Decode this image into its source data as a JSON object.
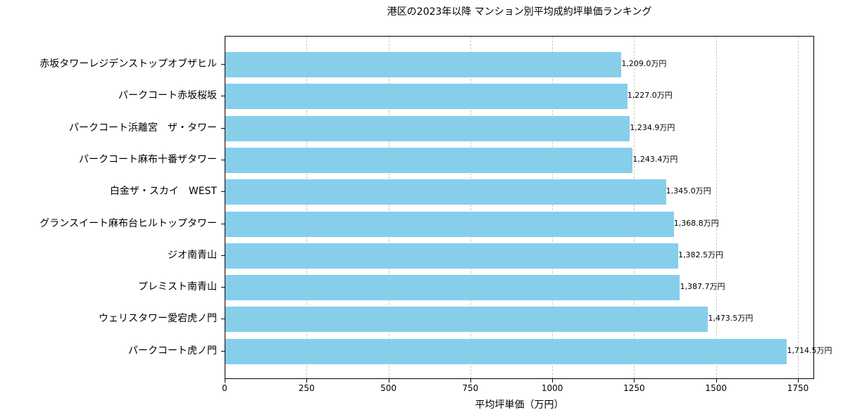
{
  "chart_data": {
    "type": "bar",
    "orientation": "horizontal",
    "title": "港区の2023年以降 マンション別平均成約坪単価ランキング",
    "xlabel": "平均坪単価（万円）",
    "ylabel": "",
    "xlim": [
      0,
      1800
    ],
    "xticks": [
      0,
      250,
      500,
      750,
      1000,
      1250,
      1500,
      1750
    ],
    "grid": {
      "x": true,
      "y": false,
      "style": "dashed"
    },
    "bar_color": "#87CEEB",
    "categories": [
      "赤坂タワーレジデンストップオブザヒル",
      "パークコート赤坂桜坂",
      "パークコート浜離宮　ザ・タワー",
      "パークコート麻布十番ザタワー",
      "白金ザ・スカイ　WEST",
      "グランスイート麻布台ヒルトップタワー",
      "ジオ南青山",
      "プレミスト南青山",
      "ウェリスタワー愛宕虎ノ門",
      "パークコート虎ノ門"
    ],
    "values": [
      1209.0,
      1227.0,
      1234.9,
      1243.4,
      1345.0,
      1368.8,
      1382.5,
      1387.7,
      1473.5,
      1714.5
    ],
    "value_labels": [
      "1,209.0万円",
      "1,227.0万円",
      "1,234.9万円",
      "1,243.4万円",
      "1,345.0万円",
      "1,368.8万円",
      "1,382.5万円",
      "1,387.7万円",
      "1,473.5万円",
      "1,714.5万円"
    ]
  }
}
